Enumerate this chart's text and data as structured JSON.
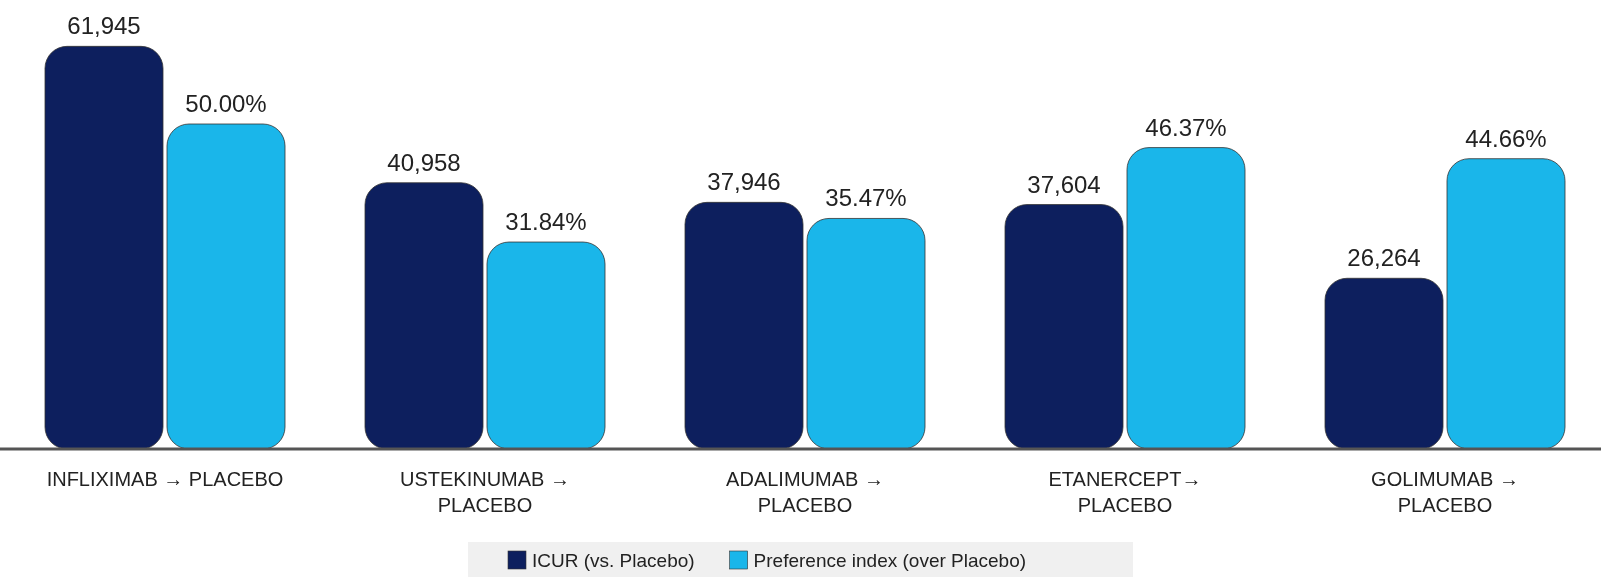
{
  "chart_data": {
    "type": "bar",
    "categories": [
      "INFLIXIMAB → PLACEBO",
      "USTEKINUMAB →\nPLACEBO",
      "ADALIMUMAB →\nPLACEBO",
      "ETANERCEPT→\nPLACEBO",
      "GOLIMUMAB →\nPLACEBO"
    ],
    "series": [
      {
        "name": "ICUR (vs. Placebo)",
        "color": "#0d1f5e",
        "values": [
          61945,
          40958,
          37946,
          37604,
          26264
        ],
        "value_labels": [
          "61,945",
          "40,958",
          "37,946",
          "37,604",
          "26,264"
        ]
      },
      {
        "name": "Preference index (over Placebo)",
        "color": "#1ab6ea",
        "axis": "y2",
        "values": [
          50.0,
          31.84,
          35.47,
          46.37,
          44.66
        ],
        "value_labels": [
          "50.00%",
          "31.84%",
          "35.47%",
          "46.37%",
          "44.66%"
        ]
      }
    ],
    "ylim": [
      0,
      62000
    ],
    "y2lim": [
      0,
      62
    ],
    "tick_labels": "x",
    "legend": "bottom",
    "grid": false
  }
}
